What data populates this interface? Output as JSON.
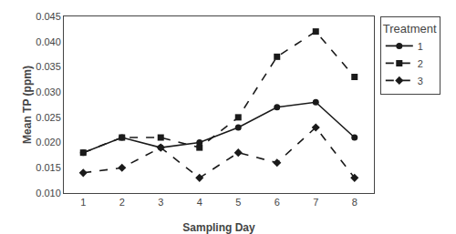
{
  "chart_data": {
    "type": "line",
    "x": [
      1,
      2,
      3,
      4,
      5,
      6,
      7,
      8
    ],
    "series": [
      {
        "name": "1",
        "color": "#1a1a1a",
        "marker": "circle",
        "line_style": "solid",
        "values": [
          0.018,
          0.021,
          0.019,
          0.02,
          0.023,
          0.027,
          0.028,
          0.021
        ]
      },
      {
        "name": "2",
        "color": "#1a1a1a",
        "marker": "square",
        "line_style": "dash",
        "values": [
          0.018,
          0.021,
          0.021,
          0.019,
          0.025,
          0.037,
          0.042,
          0.033
        ]
      },
      {
        "name": "3",
        "color": "#1a1a1a",
        "marker": "diamond",
        "line_style": "dash",
        "values": [
          0.014,
          0.015,
          0.019,
          0.013,
          0.018,
          0.016,
          0.023,
          0.013
        ]
      }
    ],
    "x_label": "Sampling Day",
    "y_label": "Mean TP (ppm)",
    "xlim": [
      0.5,
      8.5
    ],
    "xticks": [
      1,
      2,
      3,
      4,
      5,
      6,
      7,
      8
    ],
    "ylim": [
      0.01,
      0.045
    ],
    "yticks": [
      {
        "value": 0.01,
        "label": "0.010"
      },
      0.015,
      {
        "value": 0.02,
        "label": "0.020"
      },
      0.025,
      {
        "value": 0.03,
        "label": "0.030"
      },
      0.035,
      {
        "value": 0.04,
        "label": "0.040"
      },
      0.045
    ],
    "legend_title": "Treatment",
    "legend": "right",
    "grid": false
  }
}
